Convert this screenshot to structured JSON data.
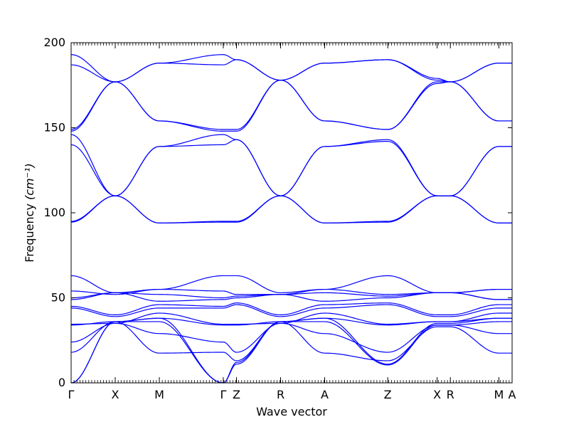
{
  "chart_data": {
    "type": "line",
    "title": "",
    "xlabel": "Wave vector",
    "ylabel": "Frequency",
    "ylabel_unit": "(cm⁻¹)",
    "ylim": [
      0,
      200
    ],
    "yticks": [
      0,
      50,
      100,
      150,
      200
    ],
    "grid": false,
    "line_color": "#0000ff",
    "high_symmetry_points": [
      {
        "label": "Γ",
        "x": 0.0
      },
      {
        "label": "X",
        "x": 0.1
      },
      {
        "label": "M",
        "x": 0.2
      },
      {
        "label": "Γ",
        "x": 0.345
      },
      {
        "label": "Z",
        "x": 0.375
      },
      {
        "label": "R",
        "x": 0.475
      },
      {
        "label": "A",
        "x": 0.575
      },
      {
        "label": "Z",
        "x": 0.718
      },
      {
        "label": "X",
        "x": 0.83
      },
      {
        "label": "R",
        "x": 0.86
      },
      {
        "label": "M",
        "x": 0.97
      },
      {
        "label": "A",
        "x": 1.0
      }
    ],
    "series": [
      {
        "x": [
          0,
          0.1,
          0.2,
          0.345,
          0.375,
          0.475,
          0.575,
          0.718,
          0.83,
          0.86,
          0.97,
          1.0
        ],
        "values": [
          193,
          177,
          188,
          193,
          190,
          178,
          188,
          190,
          178,
          177,
          188,
          188
        ]
      },
      {
        "x": [
          0,
          0.1,
          0.2,
          0.345,
          0.375,
          0.475,
          0.575,
          0.718,
          0.83,
          0.86,
          0.97,
          1.0
        ],
        "values": [
          187,
          177,
          188,
          187,
          190,
          178,
          188,
          190,
          179,
          177,
          188,
          188
        ]
      },
      {
        "x": [
          0,
          0.1,
          0.2,
          0.345,
          0.375,
          0.475,
          0.575,
          0.718,
          0.83,
          0.86,
          0.97,
          1.0
        ],
        "values": [
          149,
          177,
          154,
          149,
          149,
          178,
          154,
          149,
          177,
          177,
          154,
          154
        ]
      },
      {
        "x": [
          0,
          0.1,
          0.2,
          0.345,
          0.375,
          0.475,
          0.575,
          0.718,
          0.83,
          0.86,
          0.97,
          1.0
        ],
        "values": [
          148,
          177,
          154,
          148,
          148,
          178,
          154,
          149,
          176,
          177,
          154,
          154
        ]
      },
      {
        "x": [
          0,
          0.1,
          0.2,
          0.345,
          0.375,
          0.475,
          0.575,
          0.718,
          0.83,
          0.86,
          0.97,
          1.0
        ],
        "values": [
          146,
          110,
          139,
          146,
          143,
          110,
          139,
          143,
          110,
          110,
          139,
          139
        ]
      },
      {
        "x": [
          0,
          0.1,
          0.2,
          0.345,
          0.375,
          0.475,
          0.575,
          0.718,
          0.83,
          0.86,
          0.97,
          1.0
        ],
        "values": [
          140,
          110,
          139,
          140,
          143,
          110,
          139,
          142,
          110,
          110,
          139,
          139
        ]
      },
      {
        "x": [
          0,
          0.1,
          0.2,
          0.345,
          0.375,
          0.475,
          0.575,
          0.718,
          0.83,
          0.86,
          0.97,
          1.0
        ],
        "values": [
          95,
          110,
          94,
          95,
          95,
          110,
          94,
          95,
          110,
          110,
          94,
          94
        ]
      },
      {
        "x": [
          0,
          0.1,
          0.2,
          0.345,
          0.375,
          0.475,
          0.575,
          0.718,
          0.83,
          0.86,
          0.97,
          1.0
        ],
        "values": [
          94.5,
          110,
          94,
          94.5,
          94.5,
          110,
          94,
          94.5,
          110,
          110,
          94,
          94
        ]
      },
      {
        "x": [
          0,
          0.1,
          0.2,
          0.345,
          0.375,
          0.475,
          0.575,
          0.718,
          0.83,
          0.86,
          0.97,
          1.0
        ],
        "values": [
          63,
          53,
          55,
          63,
          63,
          53,
          55,
          63,
          53,
          53,
          55,
          55
        ]
      },
      {
        "x": [
          0,
          0.1,
          0.2,
          0.345,
          0.375,
          0.475,
          0.575,
          0.718,
          0.83,
          0.86,
          0.97,
          1.0
        ],
        "values": [
          54,
          52,
          55,
          54,
          52,
          52,
          55,
          52,
          53,
          53,
          55,
          55
        ]
      },
      {
        "x": [
          0,
          0.1,
          0.2,
          0.345,
          0.375,
          0.475,
          0.575,
          0.718,
          0.83,
          0.86,
          0.97,
          1.0
        ],
        "values": [
          50,
          53,
          52,
          50,
          51,
          52,
          53,
          51,
          53,
          53,
          49,
          49
        ]
      },
      {
        "x": [
          0,
          0.1,
          0.2,
          0.345,
          0.375,
          0.475,
          0.575,
          0.718,
          0.83,
          0.86,
          0.97,
          1.0
        ],
        "values": [
          49,
          53,
          48,
          49,
          50,
          52,
          48,
          50,
          53,
          53,
          49,
          49
        ]
      },
      {
        "x": [
          0,
          0.1,
          0.2,
          0.345,
          0.375,
          0.475,
          0.575,
          0.718,
          0.83,
          0.86,
          0.97,
          1.0
        ],
        "values": [
          45,
          40,
          46,
          45,
          47,
          40,
          46,
          47,
          40,
          40,
          46,
          46
        ]
      },
      {
        "x": [
          0,
          0.1,
          0.2,
          0.345,
          0.375,
          0.475,
          0.575,
          0.718,
          0.83,
          0.86,
          0.97,
          1.0
        ],
        "values": [
          44,
          39,
          44,
          44,
          46,
          39,
          44,
          46,
          39,
          39,
          44,
          44
        ]
      },
      {
        "x": [
          0,
          0.1,
          0.2,
          0.345,
          0.375,
          0.475,
          0.575,
          0.718,
          0.83,
          0.86,
          0.97,
          1.0
        ],
        "values": [
          34.5,
          35,
          41,
          34.5,
          34.5,
          35,
          41,
          34.5,
          36,
          36,
          41,
          41
        ]
      },
      {
        "x": [
          0,
          0.1,
          0.2,
          0.345,
          0.375,
          0.475,
          0.575,
          0.718,
          0.83,
          0.86,
          0.97,
          1.0
        ],
        "values": [
          34,
          36,
          38,
          34,
          34,
          36,
          38,
          34,
          36,
          36,
          38,
          38
        ]
      },
      {
        "x": [
          0,
          0.1,
          0.2,
          0.345,
          0.375,
          0.475,
          0.575,
          0.718,
          0.83,
          0.86,
          0.97,
          1.0
        ],
        "values": [
          24,
          35,
          29,
          24,
          18,
          35,
          29,
          18,
          34,
          34,
          29,
          29
        ]
      },
      {
        "x": [
          0,
          0.1,
          0.2,
          0.345,
          0.375,
          0.475,
          0.575,
          0.718,
          0.83,
          0.86,
          0.97,
          1.0
        ],
        "values": [
          18,
          36,
          17.5,
          18,
          13,
          36,
          17.5,
          13,
          33,
          33,
          17.5,
          17.5
        ]
      },
      {
        "x": [
          0,
          0.1,
          0.2,
          0.345,
          0.375,
          0.475,
          0.575,
          0.718,
          0.83,
          0.86,
          0.97,
          1.0
        ],
        "values": [
          0,
          36,
          38,
          0,
          12,
          36,
          38,
          11,
          35,
          35,
          38,
          38
        ]
      },
      {
        "x": [
          0,
          0.1,
          0.2,
          0.345,
          0.375,
          0.475,
          0.575,
          0.718,
          0.83,
          0.86,
          0.97,
          1.0
        ],
        "values": [
          0,
          36,
          36,
          0,
          11,
          36,
          36,
          10.5,
          34,
          34,
          36,
          36
        ]
      }
    ]
  }
}
